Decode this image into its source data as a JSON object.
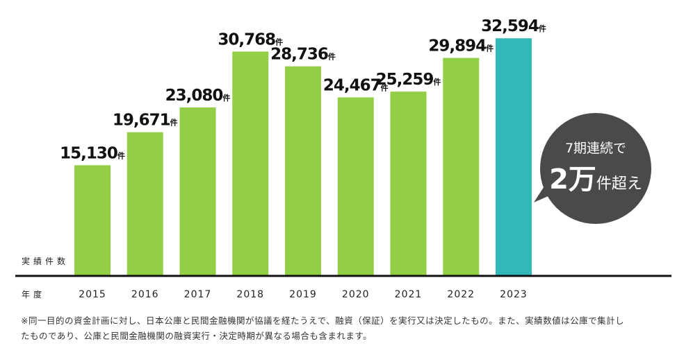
{
  "chart_data": {
    "type": "bar",
    "categories": [
      "2015",
      "2016",
      "2017",
      "2018",
      "2019",
      "2020",
      "2021",
      "2022",
      "2023"
    ],
    "values": [
      15130,
      19671,
      23080,
      30768,
      28736,
      24467,
      25259,
      29894,
      32594
    ],
    "value_labels": [
      "15,130",
      "19,671",
      "23,080",
      "30,768",
      "28,736",
      "24,467",
      "25,259",
      "29,894",
      "32,594"
    ],
    "unit": "件",
    "ylabel": "実績件数",
    "xlabel": "年度",
    "ylim": [
      0,
      35000
    ],
    "grid": false,
    "colors": {
      "default": "#93cf46",
      "highlight": "#32b8b9",
      "baseline": "#111111",
      "bubble": "#4a4a4a"
    },
    "highlight_index": 8
  },
  "callout": {
    "line1": "7期連続で",
    "big": "2万",
    "small": "件超え"
  },
  "footnote": {
    "line1": "※同一目的の資金計画に対し、日本公庫と民間金融機関が協議を経たうえで、融資（保証）を実行又は決定したもの。また、実績数値は公庫で集計し",
    "line2": "たものであり、公庫と民間金融機関の融資実行・決定時期が異なる場合も含まれます。"
  }
}
